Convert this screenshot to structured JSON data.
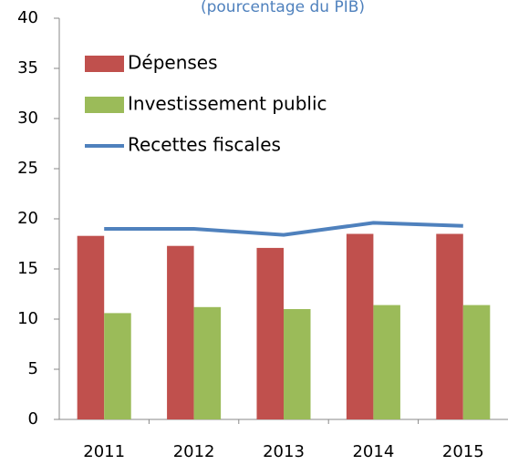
{
  "chart_data": {
    "type": "bar_line",
    "subtitle": "(pourcentage du PIB)",
    "categories": [
      "2011",
      "2012",
      "2013",
      "2014",
      "2015"
    ],
    "series": [
      {
        "name": "Dépenses",
        "type": "bar",
        "color": "#c0504d",
        "values": [
          18.3,
          17.3,
          17.1,
          18.5,
          18.5
        ]
      },
      {
        "name": "Investissement public",
        "type": "bar",
        "color": "#9bbb59",
        "values": [
          10.6,
          11.2,
          11.0,
          11.4,
          11.4
        ]
      },
      {
        "name": "Recettes fiscales",
        "type": "line",
        "color": "#4f81bd",
        "values": [
          19.0,
          19.0,
          18.4,
          19.6,
          19.3
        ]
      }
    ],
    "ylim": [
      0,
      40
    ],
    "yticks": [
      0,
      5,
      10,
      15,
      20,
      25,
      30,
      35,
      40
    ],
    "grid": false,
    "legend": "top-left"
  }
}
